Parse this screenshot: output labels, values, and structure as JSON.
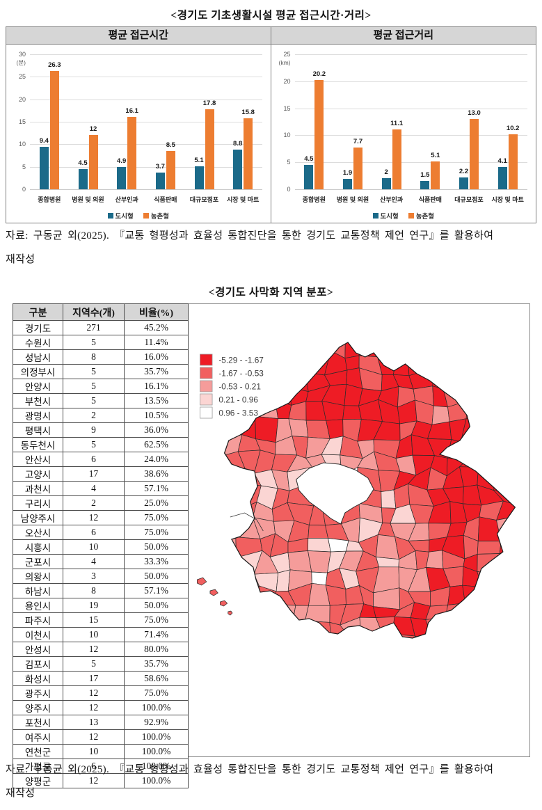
{
  "page": {
    "charts_section_title": "<경기도 기초생활시설 평균 접근시간·거리>",
    "map_section_title": "<경기도 사막화 지역 분포>",
    "source_line1": "자료: 구동균 외(2025). 『교통 형평성과 효율성 통합진단을 통한 경기도 교통정책 제언 연구』를 활용하여",
    "source_line2": "재작성"
  },
  "chart_data": [
    {
      "type": "bar",
      "title": "평균 접근시간",
      "unit_label": "(분)",
      "ylim": [
        0,
        30
      ],
      "yticks": [
        0,
        5,
        10,
        15,
        20,
        25,
        30
      ],
      "grid": true,
      "legend_position": "bottom",
      "categories": [
        "종합병원",
        "병원 및 의원",
        "산부인과",
        "식품판매",
        "대규모점포",
        "시장 및 마트"
      ],
      "series": [
        {
          "name": "도시형",
          "color": "#1B6A89",
          "values": [
            9.4,
            4.5,
            4.9,
            3.7,
            5.1,
            8.8
          ],
          "labels": [
            "9.4",
            "4.5",
            "4.9",
            "3.7",
            "5.1",
            "8.8"
          ]
        },
        {
          "name": "농촌형",
          "color": "#ED7D31",
          "values": [
            26.3,
            12,
            16.1,
            8.5,
            17.8,
            15.8
          ],
          "labels": [
            "26.3",
            "12",
            "16.1",
            "8.5",
            "17.8",
            "15.8"
          ]
        }
      ]
    },
    {
      "type": "bar",
      "title": "평균 접근거리",
      "unit_label": "(km)",
      "ylim": [
        0,
        25
      ],
      "yticks": [
        0,
        5,
        10,
        15,
        20,
        25
      ],
      "grid": true,
      "legend_position": "bottom",
      "categories": [
        "종합병원",
        "병원 및 의원",
        "산부인과",
        "식품판매",
        "대규모점포",
        "시장 및 마트"
      ],
      "series": [
        {
          "name": "도시형",
          "color": "#1B6A89",
          "values": [
            4.5,
            1.9,
            2,
            1.5,
            2.2,
            4.1
          ],
          "labels": [
            "4.5",
            "1.9",
            "2",
            "1.5",
            "2.2",
            "4.1"
          ]
        },
        {
          "name": "농촌형",
          "color": "#ED7D31",
          "values": [
            20.2,
            7.7,
            11.1,
            5.1,
            13.0,
            10.2
          ],
          "labels": [
            "20.2",
            "7.7",
            "11.1",
            "5.1",
            "13.0",
            "10.2"
          ]
        }
      ]
    }
  ],
  "table": {
    "headers": [
      "구분",
      "지역수(개)",
      "비율(%)"
    ],
    "rows": [
      [
        "경기도",
        "271",
        "45.2%"
      ],
      [
        "수원시",
        "5",
        "11.4%"
      ],
      [
        "성남시",
        "8",
        "16.0%"
      ],
      [
        "의정부시",
        "5",
        "35.7%"
      ],
      [
        "안양시",
        "5",
        "16.1%"
      ],
      [
        "부천시",
        "5",
        "13.5%"
      ],
      [
        "광명시",
        "2",
        "10.5%"
      ],
      [
        "평택시",
        "9",
        "36.0%"
      ],
      [
        "동두천시",
        "5",
        "62.5%"
      ],
      [
        "안산시",
        "6",
        "24.0%"
      ],
      [
        "고양시",
        "17",
        "38.6%"
      ],
      [
        "과천시",
        "4",
        "57.1%"
      ],
      [
        "구리시",
        "2",
        "25.0%"
      ],
      [
        "남양주시",
        "12",
        "75.0%"
      ],
      [
        "오산시",
        "6",
        "75.0%"
      ],
      [
        "시흥시",
        "10",
        "50.0%"
      ],
      [
        "군포시",
        "4",
        "33.3%"
      ],
      [
        "의왕시",
        "3",
        "50.0%"
      ],
      [
        "하남시",
        "8",
        "57.1%"
      ],
      [
        "용인시",
        "19",
        "50.0%"
      ],
      [
        "파주시",
        "15",
        "75.0%"
      ],
      [
        "이천시",
        "10",
        "71.4%"
      ],
      [
        "안성시",
        "12",
        "80.0%"
      ],
      [
        "김포시",
        "5",
        "35.7%"
      ],
      [
        "화성시",
        "17",
        "58.6%"
      ],
      [
        "광주시",
        "12",
        "75.0%"
      ],
      [
        "양주시",
        "12",
        "100.0%"
      ],
      [
        "포천시",
        "13",
        "92.9%"
      ],
      [
        "여주시",
        "12",
        "100.0%"
      ],
      [
        "연천군",
        "10",
        "100.0%"
      ],
      [
        "가평군",
        "6",
        "100.0%"
      ],
      [
        "양평군",
        "12",
        "100.0%"
      ]
    ]
  },
  "map": {
    "legend": [
      {
        "label": "-5.29 - -1.67",
        "color": "#EE1C25"
      },
      {
        "label": "-1.67 - -0.53",
        "color": "#F15F5F"
      },
      {
        "label": "-0.53 - 0.21",
        "color": "#F59C9A"
      },
      {
        "label": "0.21 - 0.96",
        "color": "#FBD5D3"
      },
      {
        "label": "0.96 - 3.53",
        "color": "#FFFFFF"
      }
    ]
  }
}
